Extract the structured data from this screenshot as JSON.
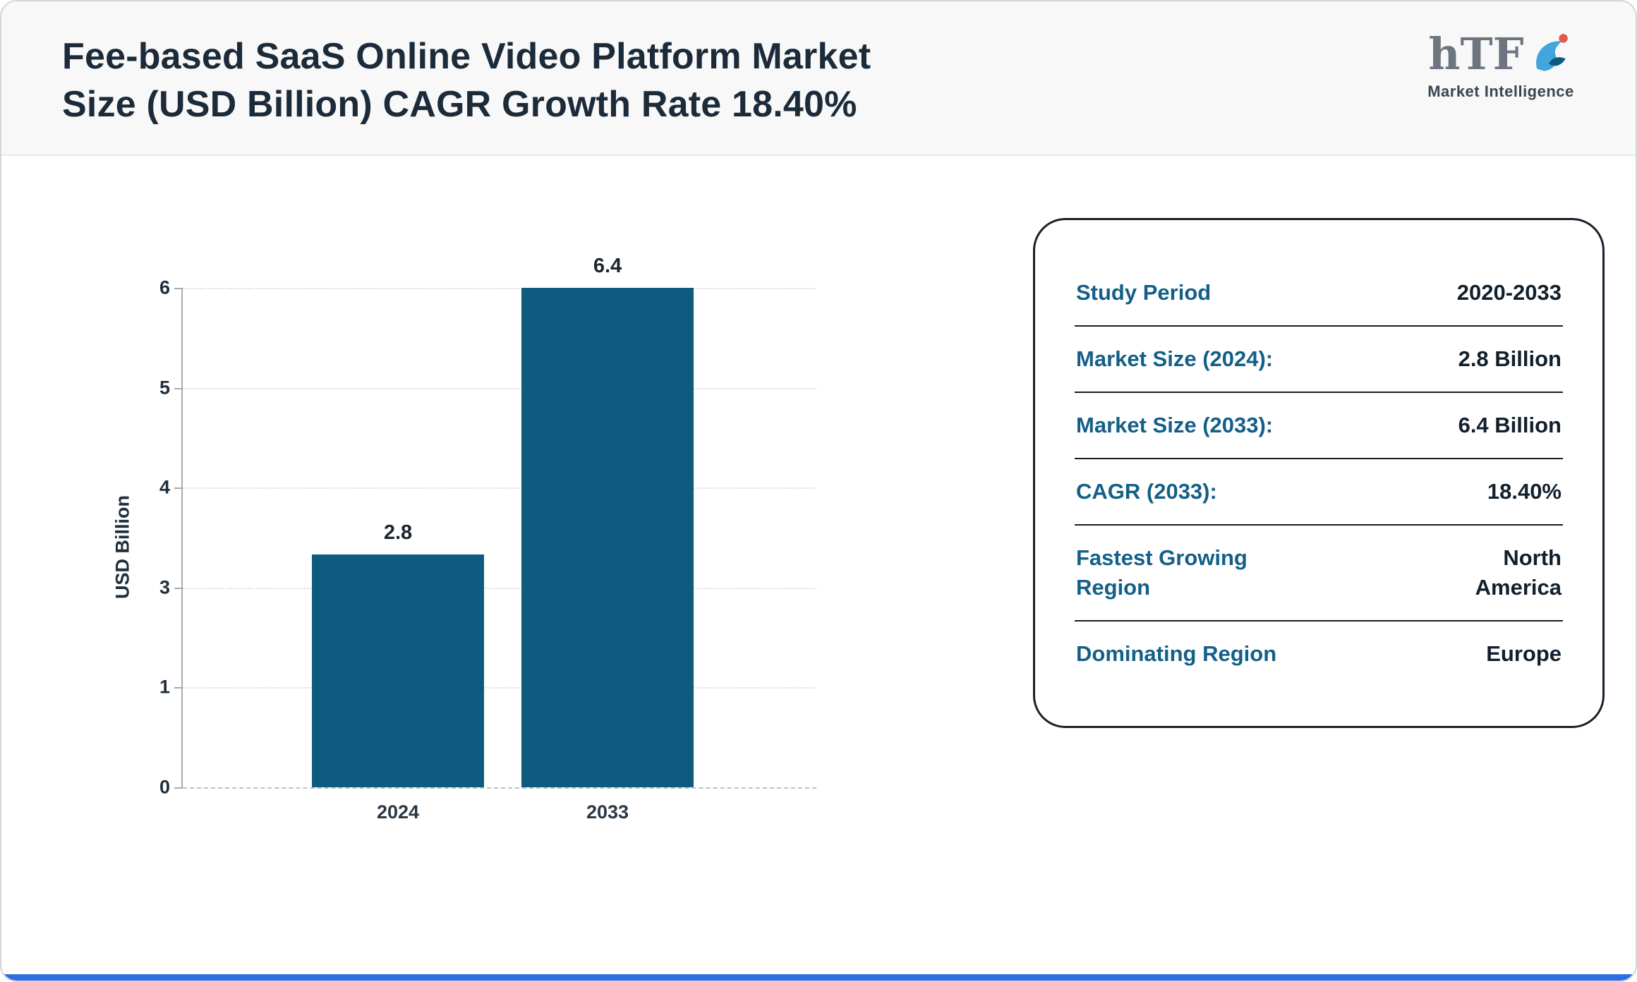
{
  "header": {
    "title_line1": "Fee-based SaaS Online Video Platform Market",
    "title_line2": "Size (USD Billion) CAGR Growth Rate 18.40%",
    "logo": {
      "text": "hTF",
      "subtext": "Market Intelligence"
    }
  },
  "chart_data": {
    "type": "bar",
    "title": "Fee-based SaaS Online Video Platform Market Size (USD Billion)",
    "categories": [
      "2024",
      "2033"
    ],
    "values": [
      2.8,
      6.4
    ],
    "bar_labels": [
      "2.8",
      "6.4"
    ],
    "xlabel": "",
    "ylabel": "USD Billion",
    "ylim": [
      0,
      6
    ],
    "ytick_labels": [
      "0",
      "1",
      "3",
      "4",
      "5",
      "6"
    ],
    "grid": "horizontal-dotted",
    "legend": "none"
  },
  "info_panel": {
    "rows": [
      {
        "label": "Study Period",
        "value": "2020-2033"
      },
      {
        "label": "Market Size (2024):",
        "value": "2.8 Billion"
      },
      {
        "label": "Market Size (2033):",
        "value": "6.4 Billion"
      },
      {
        "label": "CAGR (2033):",
        "value": "18.40%"
      },
      {
        "label": "Fastest Growing Region",
        "value": "North America"
      },
      {
        "label": "Dominating Region",
        "value": "Europe"
      }
    ]
  },
  "colors": {
    "bar": "#0d5c80",
    "panel_label": "#135f87",
    "value_text": "#121f2c",
    "title_text": "#1c2b3a",
    "accent_bottom": "#2e6ce4"
  }
}
